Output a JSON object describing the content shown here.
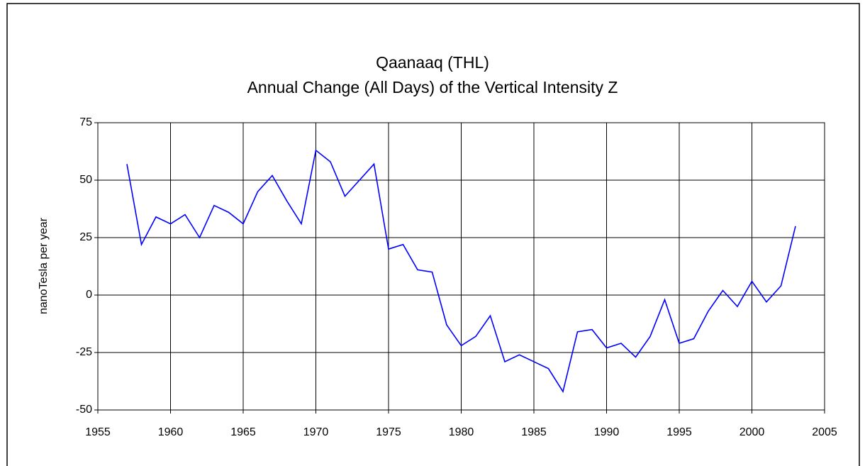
{
  "chart_data": {
    "type": "line",
    "title": [
      "Qaanaaq (THL)",
      "Annual Change (All Days) of the Vertical Intensity Z"
    ],
    "ylabel": "nanoTesla per year",
    "x": [
      1957,
      1958,
      1959,
      1960,
      1961,
      1962,
      1963,
      1964,
      1965,
      1966,
      1967,
      1968,
      1969,
      1970,
      1971,
      1972,
      1973,
      1974,
      1975,
      1976,
      1977,
      1978,
      1979,
      1980,
      1981,
      1982,
      1983,
      1984,
      1985,
      1986,
      1987,
      1988,
      1989,
      1990,
      1991,
      1992,
      1993,
      1994,
      1995,
      1996,
      1997,
      1998,
      1999,
      2000,
      2001,
      2002,
      2003
    ],
    "values": [
      57,
      22,
      34,
      31,
      35,
      25,
      39,
      36,
      31,
      45,
      52,
      41,
      31,
      63,
      58,
      43,
      50,
      57,
      20,
      22,
      11,
      10,
      -13,
      -22,
      -18,
      -9,
      -29,
      -26,
      -29,
      -32,
      -42,
      -16,
      -15,
      -23,
      -21,
      -27,
      -18,
      -2,
      -21,
      -19,
      -7,
      2,
      -5,
      6,
      -3,
      4,
      30
    ],
    "color": "#0000ff",
    "xlim": [
      1955,
      2005
    ],
    "xticks": [
      1955,
      1960,
      1965,
      1970,
      1975,
      1980,
      1985,
      1990,
      1995,
      2000,
      2005
    ],
    "ylim": [
      -50,
      75
    ],
    "yticks": [
      -50,
      -25,
      0,
      25,
      50,
      75
    ],
    "grid": true
  }
}
